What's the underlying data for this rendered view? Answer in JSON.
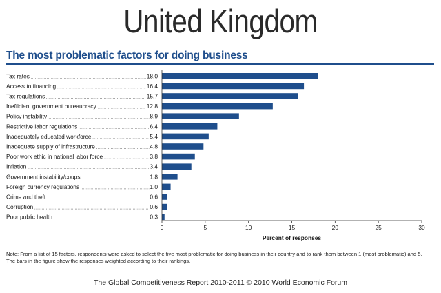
{
  "header": {
    "country": "United Kingdom",
    "subtitle": "The most problematic factors for doing business"
  },
  "chart_data": {
    "type": "bar",
    "orientation": "horizontal",
    "title": "The most problematic factors for doing business",
    "xlabel": "Percent of responses",
    "ylabel": "",
    "xlim": [
      0,
      30
    ],
    "xticks": [
      0,
      5,
      10,
      15,
      20,
      25,
      30
    ],
    "bar_color": "#1f4e8c",
    "categories": [
      "Tax rates",
      "Access to financing",
      "Tax regulations",
      "Inefficient government bureaucracy",
      "Policy instability",
      "Restrictive labor regulations",
      "Inadequately educated workforce",
      "Inadequate supply of infrastructure",
      "Poor work ethic in national labor force",
      "Inflation",
      "Government instability/coups",
      "Foreign currency regulations",
      "Crime and theft",
      "Corruption",
      "Poor public health"
    ],
    "values": [
      18.0,
      16.4,
      15.7,
      12.8,
      8.9,
      6.4,
      5.4,
      4.8,
      3.8,
      3.4,
      1.8,
      1.0,
      0.6,
      0.6,
      0.3
    ],
    "value_labels": [
      "18.0",
      "16.4",
      "15.7",
      "12.8",
      "8.9",
      "6.4",
      "5.4",
      "4.8",
      "3.8",
      "3.4",
      "1.8",
      "1.0",
      "0.6",
      "0.6",
      "0.3"
    ]
  },
  "note": "Note: From a list of 15 factors, respondents were asked to select the five most problematic for doing business in their country and to rank them between 1 (most problematic) and 5. The bars in the figure show the responses weighted according to their rankings.",
  "footer": "The Global Competitiveness Report 2010-2011 © 2010 World Economic Forum"
}
